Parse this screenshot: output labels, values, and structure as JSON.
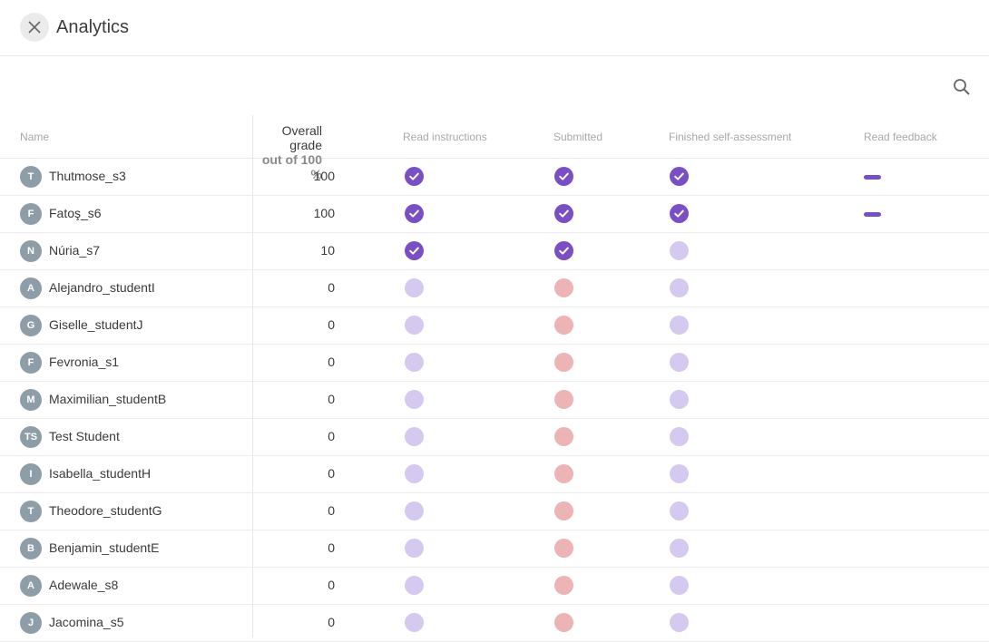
{
  "header": {
    "title": "Analytics"
  },
  "columns": {
    "name": "Name",
    "grade": "Overall grade",
    "grade_sub": "out of 100 %",
    "read_instructions": "Read instructions",
    "submitted": "Submitted",
    "self_assessment": "Finished self-assessment",
    "read_feedback": "Read feedback"
  },
  "colors": {
    "done": "#7b4fc4",
    "pending": "#d6c9ef",
    "missing": "#ecb4b4",
    "avatar": "#8d9ea9"
  },
  "students": [
    {
      "initials": "T",
      "name": "Thutmose_s3",
      "grade": "100",
      "read": "done",
      "submitted": "done",
      "self": "done",
      "feedback": "read"
    },
    {
      "initials": "F",
      "name": "Fatoş_s6",
      "grade": "100",
      "read": "done",
      "submitted": "done",
      "self": "done",
      "feedback": "read"
    },
    {
      "initials": "N",
      "name": "Núria_s7",
      "grade": "10",
      "read": "done",
      "submitted": "done",
      "self": "pending",
      "feedback": "none"
    },
    {
      "initials": "A",
      "name": "Alejandro_studentI",
      "grade": "0",
      "read": "pending",
      "submitted": "missing",
      "self": "pending",
      "feedback": "none"
    },
    {
      "initials": "G",
      "name": "Giselle_studentJ",
      "grade": "0",
      "read": "pending",
      "submitted": "missing",
      "self": "pending",
      "feedback": "none"
    },
    {
      "initials": "F",
      "name": "Fevronia_s1",
      "grade": "0",
      "read": "pending",
      "submitted": "missing",
      "self": "pending",
      "feedback": "none"
    },
    {
      "initials": "M",
      "name": "Maximilian_studentB",
      "grade": "0",
      "read": "pending",
      "submitted": "missing",
      "self": "pending",
      "feedback": "none"
    },
    {
      "initials": "TS",
      "name": "Test Student",
      "grade": "0",
      "read": "pending",
      "submitted": "missing",
      "self": "pending",
      "feedback": "none"
    },
    {
      "initials": "I",
      "name": "Isabella_studentH",
      "grade": "0",
      "read": "pending",
      "submitted": "missing",
      "self": "pending",
      "feedback": "none"
    },
    {
      "initials": "T",
      "name": "Theodore_studentG",
      "grade": "0",
      "read": "pending",
      "submitted": "missing",
      "self": "pending",
      "feedback": "none"
    },
    {
      "initials": "B",
      "name": "Benjamin_studentE",
      "grade": "0",
      "read": "pending",
      "submitted": "missing",
      "self": "pending",
      "feedback": "none"
    },
    {
      "initials": "A",
      "name": "Adewale_s8",
      "grade": "0",
      "read": "pending",
      "submitted": "missing",
      "self": "pending",
      "feedback": "none"
    },
    {
      "initials": "J",
      "name": "Jacomina_s5",
      "grade": "0",
      "read": "pending",
      "submitted": "missing",
      "self": "pending",
      "feedback": "none"
    }
  ]
}
